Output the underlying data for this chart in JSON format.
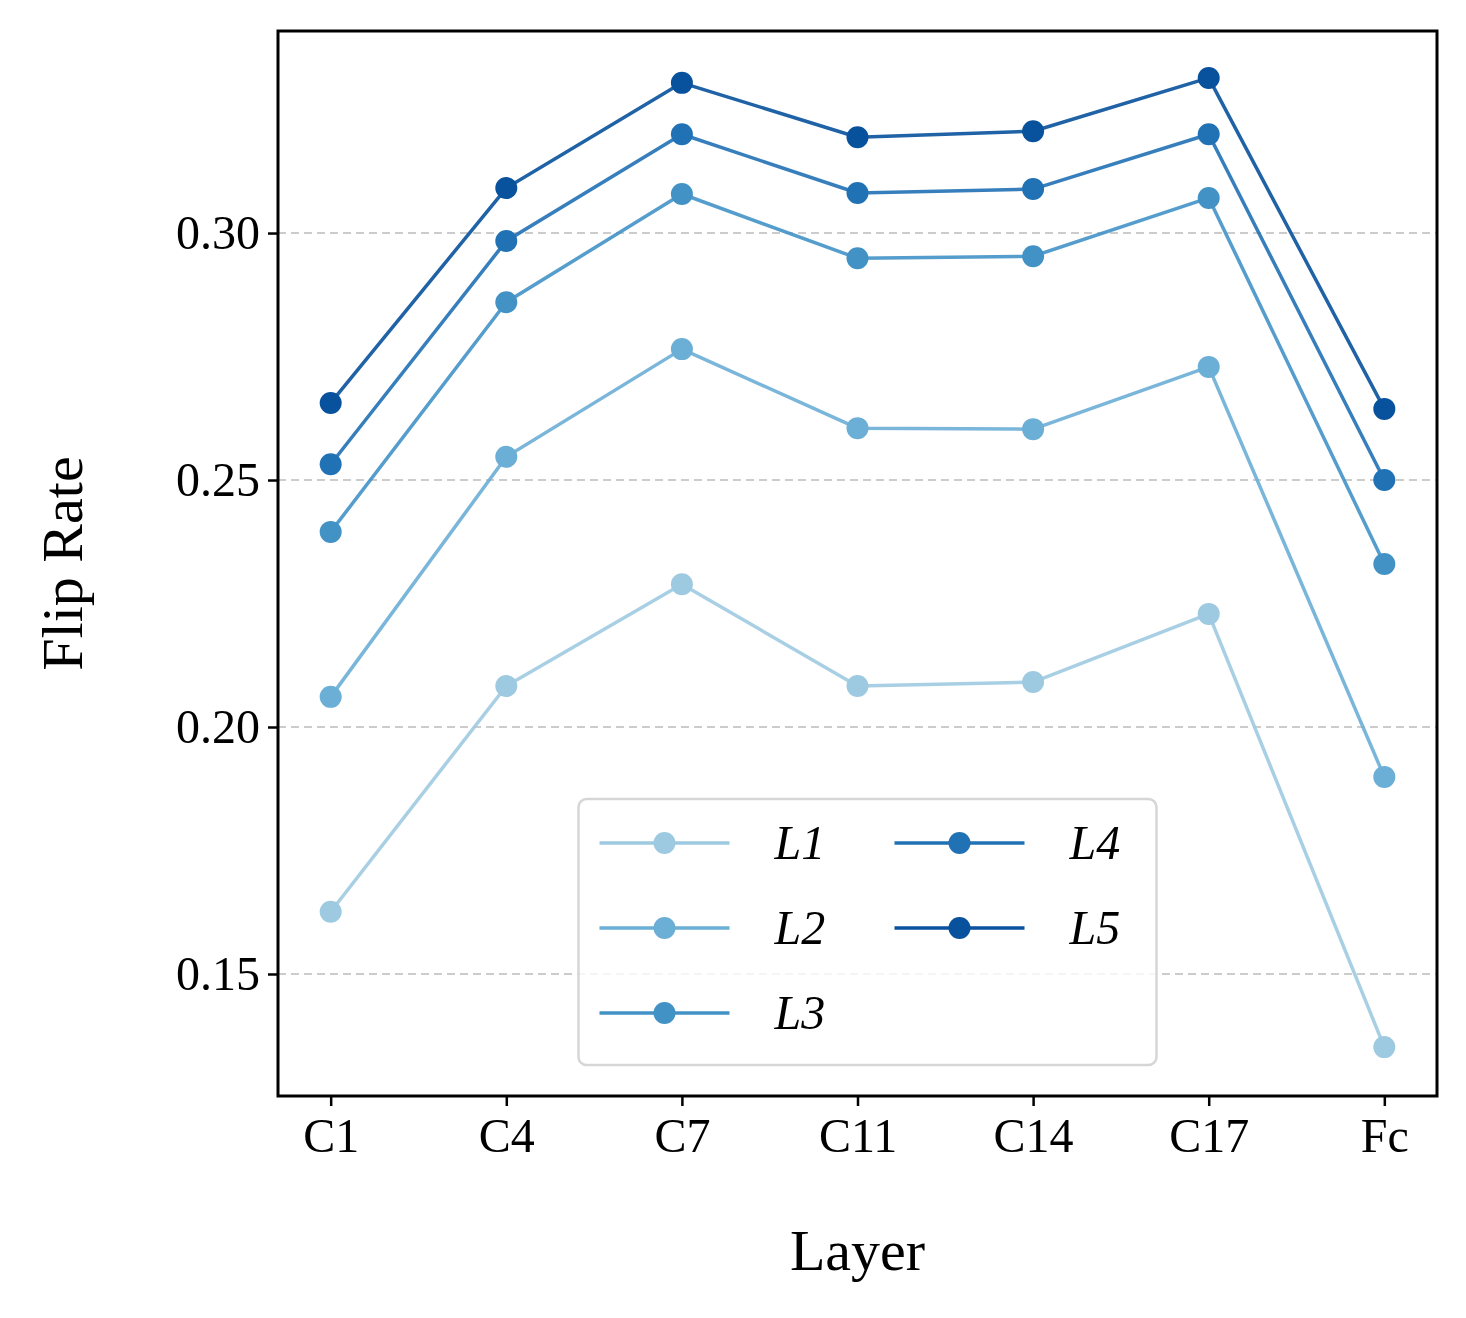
{
  "chart_data": {
    "type": "line",
    "xlabel": "Layer",
    "ylabel": "Flip Rate",
    "categories": [
      "C1",
      "C4",
      "C7",
      "C11",
      "C14",
      "C17",
      "Fc"
    ],
    "series": [
      {
        "name": "L1",
        "color": "#9ecae1",
        "values": [
          0.1626,
          0.2083,
          0.2289,
          0.2083,
          0.2091,
          0.2229,
          0.1352
        ]
      },
      {
        "name": "L2",
        "color": "#6baed6",
        "values": [
          0.2061,
          0.2547,
          0.2765,
          0.2605,
          0.2603,
          0.2729,
          0.1899
        ]
      },
      {
        "name": "L3",
        "color": "#4292c6",
        "values": [
          0.2395,
          0.286,
          0.3079,
          0.2949,
          0.2953,
          0.3071,
          0.233
        ]
      },
      {
        "name": "L4",
        "color": "#2171b5",
        "values": [
          0.2532,
          0.2984,
          0.32,
          0.3081,
          0.3089,
          0.32,
          0.25
        ]
      },
      {
        "name": "L5",
        "color": "#08519c",
        "values": [
          0.2656,
          0.3091,
          0.3304,
          0.3194,
          0.3206,
          0.3314,
          0.2644
        ]
      }
    ],
    "ylim": [
      0.1253,
      0.3409
    ],
    "yticks": [
      {
        "value": 0.15,
        "label": "0.15"
      },
      {
        "value": 0.2,
        "label": "0.20"
      },
      {
        "value": 0.25,
        "label": "0.25"
      },
      {
        "value": 0.3,
        "label": "0.30"
      }
    ],
    "grid": "y",
    "legend": "bottom",
    "marker": "circle",
    "line_style": "solid"
  }
}
